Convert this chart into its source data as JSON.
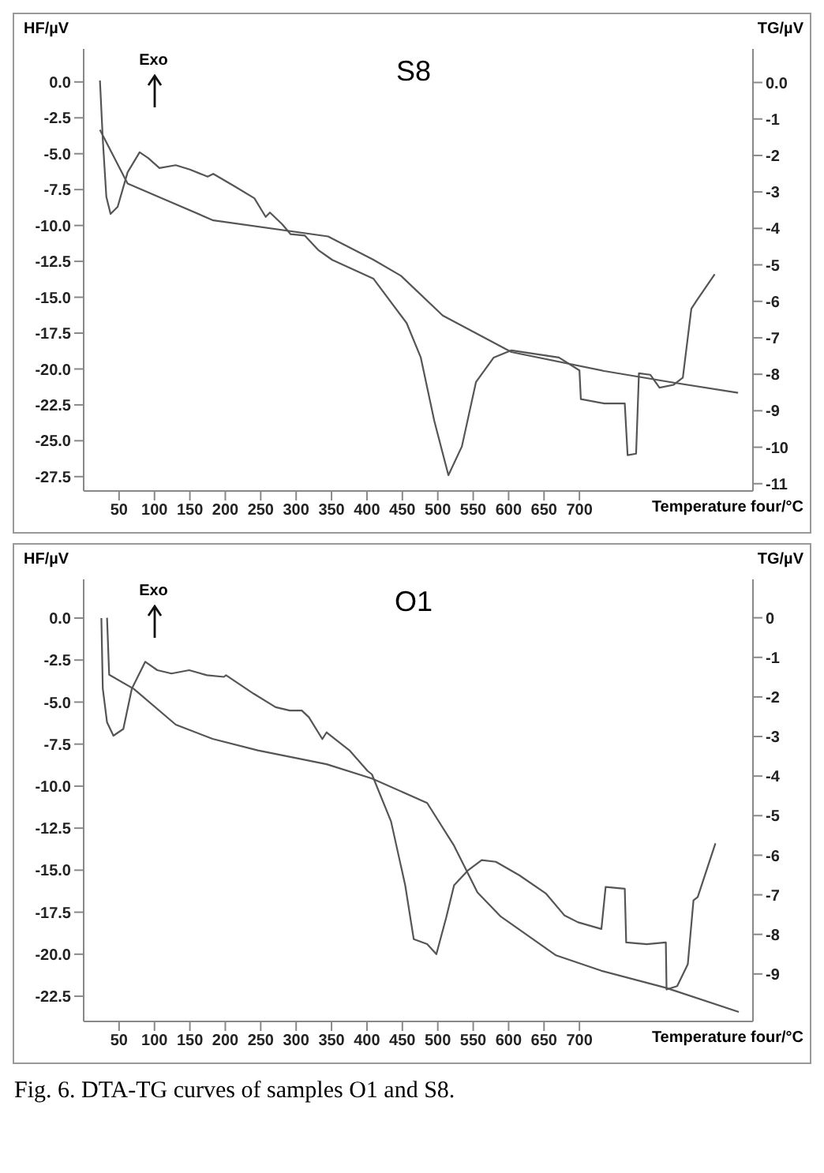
{
  "chart_data": [
    {
      "type": "line",
      "title": "S8",
      "ylabel": "HF/µV",
      "y2label": "TG/µV",
      "xlabel": "Temperature four/°C",
      "annotations": [
        "Exo"
      ],
      "xlim": [
        0,
        945
      ],
      "xticks": [
        50,
        100,
        150,
        200,
        250,
        300,
        350,
        400,
        450,
        500,
        550,
        600,
        650,
        700
      ],
      "ylim": [
        -28.5,
        2.3
      ],
      "yticks": [
        {
          "value": 0,
          "label": "0.0"
        },
        -2.5,
        {
          "value": -5,
          "label": "-5.0"
        },
        -7.5,
        {
          "value": -10,
          "label": "-10.0"
        },
        -12.5,
        {
          "value": -15,
          "label": "-15.0"
        },
        -17.5,
        {
          "value": -20,
          "label": "-20.0"
        },
        -22.5,
        {
          "value": -25,
          "label": "-25.0"
        },
        -27.5
      ],
      "y2lim": [
        -11.2,
        0.92
      ],
      "y2ticks": [
        {
          "value": 0,
          "label": "0.0"
        },
        -1,
        -2,
        -3,
        -4,
        -5,
        -6,
        -7,
        -8,
        -9,
        -10,
        -11
      ],
      "series": [
        {
          "color": "#555555",
          "x": [
            23,
            27,
            32,
            38,
            48,
            62,
            79,
            91,
            107,
            130,
            150,
            175,
            183,
            214,
            241,
            257,
            263,
            280,
            292,
            312,
            331,
            351,
            409,
            456,
            476,
            495,
            515,
            534,
            554,
            579,
            604,
            671,
            700,
            702,
            735,
            764,
            768,
            780,
            784,
            800,
            813,
            833,
            846,
            858,
            866,
            891
          ],
          "values": [
            0.1,
            -4.0,
            -8.0,
            -9.2,
            -8.7,
            -6.3,
            -4.9,
            -5.3,
            -6.0,
            -5.8,
            -6.1,
            -6.6,
            -6.4,
            -7.3,
            -8.1,
            -9.4,
            -9.1,
            -9.9,
            -10.6,
            -10.7,
            -11.7,
            -12.4,
            -13.7,
            -16.8,
            -19.2,
            -23.6,
            -27.4,
            -25.4,
            -20.9,
            -19.2,
            -18.7,
            -19.2,
            -20.1,
            -22.1,
            -22.4,
            -22.4,
            -26.0,
            -25.9,
            -20.3,
            -20.4,
            -21.3,
            -21.1,
            -20.6,
            -15.8,
            -15.2,
            -13.4
          ]
        },
        {
          "color": "#555555",
          "axis": "y2",
          "x": [
            23,
            62,
            183,
            345,
            409,
            448,
            507,
            604,
            735,
            833,
            924
          ],
          "values": [
            -1.3,
            -2.77,
            -3.78,
            -4.22,
            -4.86,
            -5.3,
            -6.39,
            -7.39,
            -7.91,
            -8.23,
            -8.51
          ]
        }
      ]
    },
    {
      "type": "line",
      "title": "O1",
      "ylabel": "HF/µV",
      "y2label": "TG/µV",
      "xlabel": "Temperature four/°C",
      "annotations": [
        "Exo",
        "Fig. 6. DTA-TG curves of samples O1 and S8."
      ],
      "xlim": [
        0,
        945
      ],
      "xticks": [
        50,
        100,
        150,
        200,
        250,
        300,
        350,
        400,
        450,
        500,
        550,
        600,
        650,
        700
      ],
      "ylim": [
        -24,
        2.3
      ],
      "yticks": [
        {
          "value": 0,
          "label": "0.0"
        },
        -2.5,
        {
          "value": -5,
          "label": "-5.0"
        },
        -7.5,
        {
          "value": -10,
          "label": "-10.0"
        },
        -12.5,
        {
          "value": -15,
          "label": "-15.0"
        },
        -17.5,
        {
          "value": -20,
          "label": "-20.0"
        },
        -22.5
      ],
      "y2lim": [
        -10.2,
        0.97
      ],
      "y2ticks": [
        0,
        -1,
        -2,
        -3,
        -4,
        -5,
        -6,
        -7,
        -8,
        -9
      ],
      "series": [
        {
          "color": "#555555",
          "x": [
            25,
            27,
            33,
            42,
            56,
            68,
            87,
            104,
            124,
            149,
            174,
            198,
            201,
            240,
            271,
            291,
            308,
            318,
            337,
            343,
            376,
            401,
            407,
            434,
            454,
            466,
            485,
            498,
            512,
            523,
            543,
            562,
            582,
            615,
            653,
            679,
            698,
            731,
            737,
            764,
            766,
            795,
            822,
            823,
            838,
            853,
            861,
            867,
            892
          ],
          "values": [
            0,
            -4.2,
            -6.2,
            -7.0,
            -6.6,
            -4.2,
            -2.6,
            -3.1,
            -3.3,
            -3.1,
            -3.4,
            -3.5,
            -3.4,
            -4.5,
            -5.3,
            -5.5,
            -5.5,
            -5.9,
            -7.2,
            -6.8,
            -7.9,
            -9.1,
            -9.3,
            -12.1,
            -15.9,
            -19.1,
            -19.4,
            -20.0,
            -17.8,
            -15.9,
            -15.0,
            -14.4,
            -14.5,
            -15.3,
            -16.4,
            -17.7,
            -18.1,
            -18.5,
            -16.0,
            -16.1,
            -19.3,
            -19.4,
            -19.3,
            -22.1,
            -21.9,
            -20.6,
            -16.8,
            -16.6,
            -13.4
          ]
        },
        {
          "color": "#555555",
          "axis": "y2",
          "x": [
            33,
            36,
            71,
            130,
            182,
            246,
            343,
            407,
            485,
            523,
            556,
            589,
            667,
            731,
            822,
            925
          ],
          "values": [
            0,
            -1.44,
            -1.8,
            -2.7,
            -3.06,
            -3.35,
            -3.7,
            -4.06,
            -4.68,
            -5.76,
            -6.94,
            -7.55,
            -8.53,
            -8.92,
            -9.35,
            -9.96
          ]
        }
      ]
    }
  ]
}
